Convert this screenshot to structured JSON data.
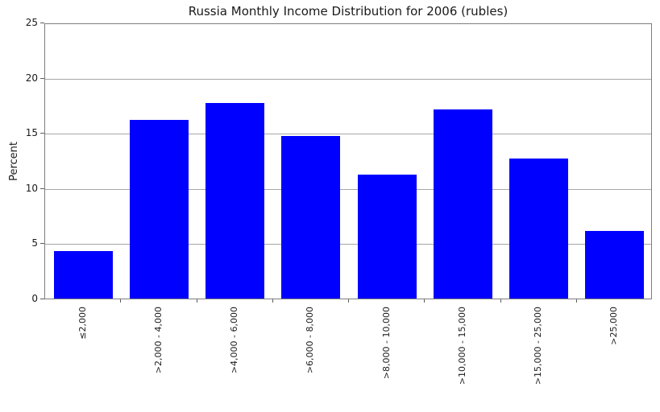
{
  "chart_data": {
    "type": "bar",
    "title": "Russia Monthly Income Distribution for 2006 (rubles)",
    "xlabel": "",
    "ylabel": "Percent",
    "categories": [
      "≤2,000",
      ">2,000 - 4,000",
      ">4,000 - 6,000",
      ">6,000 - 8,000",
      ">8,000 - 10,000",
      ">10,000 - 15,000",
      ">15,000 - 25,000",
      ">25,000"
    ],
    "values": [
      4.3,
      16.2,
      17.7,
      14.7,
      11.2,
      17.1,
      12.7,
      6.1
    ],
    "ylim": [
      0,
      25
    ],
    "yticks": [
      0,
      5,
      10,
      15,
      20,
      25
    ],
    "legend": "none",
    "grid": "horizontal",
    "bar_color": "#0000ff",
    "grid_color": "#a6a6a6",
    "frame_color": "#7d7d7d",
    "text_color": "#1a1a1a"
  }
}
